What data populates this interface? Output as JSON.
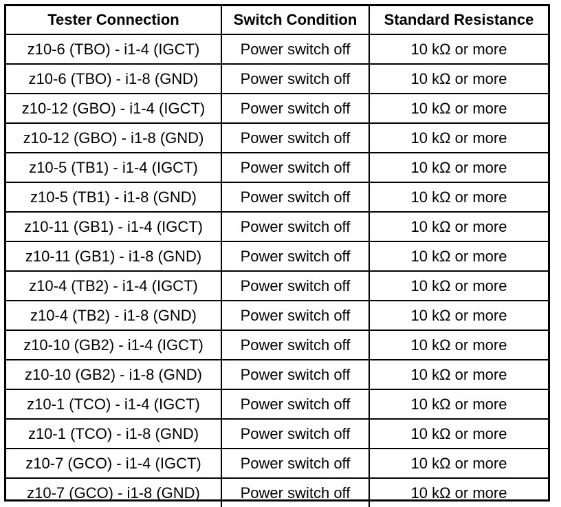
{
  "table": {
    "headers": [
      "Tester Connection",
      "Switch Condition",
      "Standard Resistance"
    ],
    "rows": [
      [
        "z10-6 (TBO) - i1-4 (IGCT)",
        "Power switch off",
        "10 kΩ or more"
      ],
      [
        "z10-6 (TBO) - i1-8 (GND)",
        "Power switch off",
        "10 kΩ or more"
      ],
      [
        "z10-12 (GBO) - i1-4 (IGCT)",
        "Power switch off",
        "10 kΩ or more"
      ],
      [
        "z10-12 (GBO) - i1-8 (GND)",
        "Power switch off",
        "10 kΩ or more"
      ],
      [
        "z10-5 (TB1) - i1-4 (IGCT)",
        "Power switch off",
        "10 kΩ or more"
      ],
      [
        "z10-5 (TB1) - i1-8 (GND)",
        "Power switch off",
        "10 kΩ or more"
      ],
      [
        "z10-11 (GB1) - i1-4 (IGCT)",
        "Power switch off",
        "10 kΩ or more"
      ],
      [
        "z10-11 (GB1) - i1-8 (GND)",
        "Power switch off",
        "10 kΩ or more"
      ],
      [
        "z10-4 (TB2) - i1-4 (IGCT)",
        "Power switch off",
        "10 kΩ or more"
      ],
      [
        "z10-4 (TB2) - i1-8 (GND)",
        "Power switch off",
        "10 kΩ or more"
      ],
      [
        "z10-10 (GB2) - i1-4 (IGCT)",
        "Power switch off",
        "10 kΩ or more"
      ],
      [
        "z10-10 (GB2) - i1-8 (GND)",
        "Power switch off",
        "10 kΩ or more"
      ],
      [
        "z10-1 (TCO) - i1-4 (IGCT)",
        "Power switch off",
        "10 kΩ or more"
      ],
      [
        "z10-1 (TCO) - i1-8 (GND)",
        "Power switch off",
        "10 kΩ or more"
      ],
      [
        "z10-7 (GCO) - i1-4 (IGCT)",
        "Power switch off",
        "10 kΩ or more"
      ],
      [
        "z10-7 (GCO) - i1-8 (GND)",
        "Power switch off",
        "10 kΩ or more"
      ]
    ]
  }
}
